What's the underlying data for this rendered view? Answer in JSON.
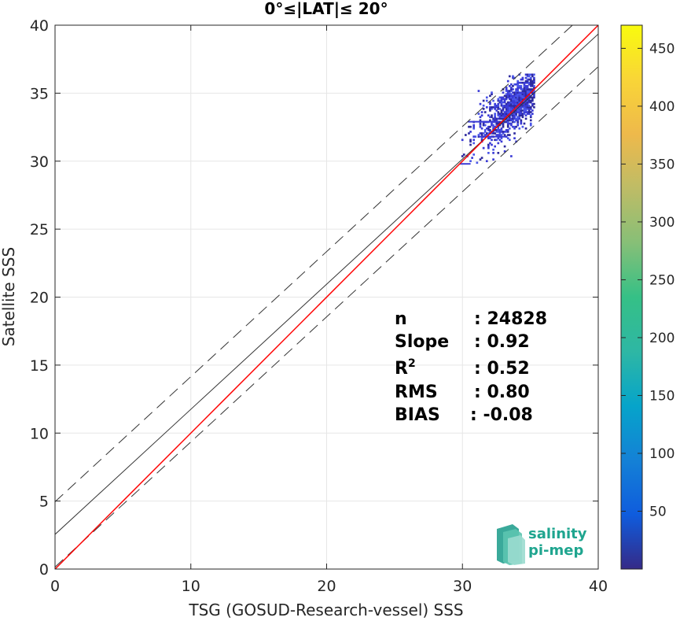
{
  "chart_data": {
    "type": "heatmap",
    "title": "0°≤|LAT|≤ 20°",
    "xlabel": "TSG (GOSUD-Research-vessel) SSS",
    "ylabel": "Satellite SSS",
    "xlim": [
      0,
      40
    ],
    "ylim": [
      0,
      40
    ],
    "xticks": [
      0,
      10,
      20,
      30,
      40
    ],
    "yticks": [
      0,
      5,
      10,
      15,
      20,
      25,
      30,
      35,
      40
    ],
    "grid": true,
    "colorbar": {
      "range": [
        0,
        470
      ],
      "ticks": [
        50,
        100,
        150,
        200,
        250,
        300,
        350,
        400,
        450
      ],
      "colormap": "parula"
    },
    "lines": {
      "identity": {
        "slope": 1,
        "intercept": 0,
        "color": "#ff0000"
      },
      "regression": {
        "slope": 0.92,
        "intercept": 2.55,
        "color": "#333333"
      },
      "upper_bound": {
        "slope": 0.92,
        "intercept": 4.95,
        "style": "dashed"
      },
      "lower_bound": {
        "slope": 0.92,
        "intercept": 0.15,
        "style": "dashed"
      }
    },
    "density_cluster": {
      "x_range": [
        29.8,
        35.3
      ],
      "y_range": [
        29.6,
        36.4
      ],
      "center": [
        34.0,
        34.2
      ],
      "color": "#3b3bd6"
    },
    "stats": [
      {
        "label": "n",
        "value": ": 24828"
      },
      {
        "label": "Slope",
        "value": ": 0.92"
      },
      {
        "label": "R",
        "sup": "2",
        "value": ": 0.52"
      },
      {
        "label": "RMS",
        "value": ": 0.80"
      },
      {
        "label": "BIAS",
        "value": ": -0.08"
      }
    ]
  },
  "logo": {
    "line1": "salinity",
    "line2": "pi-mep"
  }
}
